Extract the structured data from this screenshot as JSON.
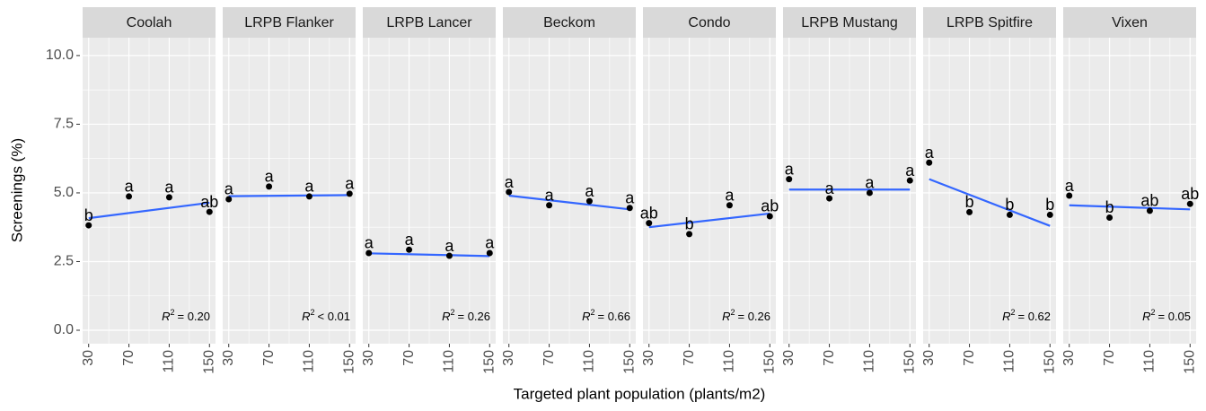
{
  "chart_data": {
    "type": "scatter",
    "x_label": "Targeted plant population (plants/m2)",
    "y_label": "Screenings (%)",
    "x": [
      30,
      70,
      110,
      150
    ],
    "xlim": [
      24,
      156
    ],
    "xticks": [
      30,
      70,
      110,
      150
    ],
    "ylim": [
      -0.49,
      10.65
    ],
    "yticks": [
      {
        "value": 0,
        "label": "0.0"
      },
      {
        "value": 2.5,
        "label": "2.5"
      },
      {
        "value": 5,
        "label": "5.0"
      },
      {
        "value": 7.5,
        "label": "7.5"
      },
      {
        "value": 10,
        "label": "10.0"
      }
    ],
    "grid": true,
    "point_color": "#000000",
    "line_color": "#3366ff",
    "r2_symbol": "R",
    "r2_exponent": "2",
    "series": [
      {
        "name": "Coolah",
        "values": [
          3.82,
          4.87,
          4.84,
          4.31
        ],
        "letters": [
          "b",
          "a",
          "a",
          "ab"
        ],
        "fit": [
          4.08,
          4.64
        ],
        "r2": "= 0.20"
      },
      {
        "name": "LRPB Flanker",
        "values": [
          4.77,
          5.23,
          4.87,
          4.97
        ],
        "letters": [
          "a",
          "a",
          "a",
          "a"
        ],
        "fit": [
          4.88,
          4.92
        ],
        "r2": "< 0.01"
      },
      {
        "name": "LRPB Lancer",
        "values": [
          2.81,
          2.93,
          2.71,
          2.81
        ],
        "letters": [
          "a",
          "a",
          "a",
          "a"
        ],
        "fit": [
          2.8,
          2.7
        ],
        "r2": "= 0.26"
      },
      {
        "name": "Beckom",
        "values": [
          5.03,
          4.55,
          4.7,
          4.45
        ],
        "letters": [
          "a",
          "a",
          "a",
          "a"
        ],
        "fit": [
          4.9,
          4.4
        ],
        "r2": "= 0.66"
      },
      {
        "name": "Condo",
        "values": [
          3.9,
          3.5,
          4.55,
          4.15
        ],
        "letters": [
          "ab",
          "b",
          "a",
          "ab"
        ],
        "fit": [
          3.75,
          4.25
        ],
        "r2": "= 0.26"
      },
      {
        "name": "LRPB Mustang",
        "values": [
          5.5,
          4.8,
          5.0,
          5.45
        ],
        "letters": [
          "a",
          "a",
          "a",
          "a"
        ],
        "fit": [
          5.12,
          5.12
        ]
      },
      {
        "name": "LRPB Spitfire",
        "values": [
          6.1,
          4.3,
          4.2,
          4.2
        ],
        "letters": [
          "a",
          "b",
          "b",
          "b"
        ],
        "fit": [
          5.5,
          3.8
        ],
        "r2": "= 0.62"
      },
      {
        "name": "Vixen",
        "values": [
          4.9,
          4.1,
          4.35,
          4.6
        ],
        "letters": [
          "a",
          "b",
          "ab",
          "ab"
        ],
        "fit": [
          4.55,
          4.4
        ],
        "r2": "= 0.05"
      }
    ]
  }
}
